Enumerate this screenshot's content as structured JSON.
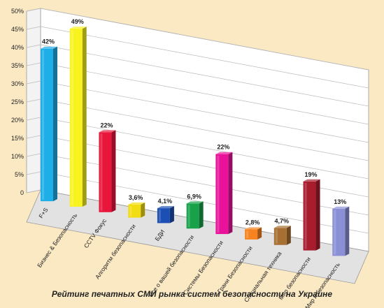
{
  "chart_data": {
    "type": "bar",
    "title": "Рейтинг печатных СМИ рынка систем безопасности на Украине",
    "xlabel": "",
    "ylabel": "",
    "ylim": [
      0,
      50
    ],
    "yticks": [
      "0",
      "5%",
      "10%",
      "15%",
      "20%",
      "25%",
      "30%",
      "35%",
      "40%",
      "45%",
      "50%"
    ],
    "categories": [
      "F+S",
      "Бизнес & Безопасность",
      "CCTV Фокус",
      "Алгоритм безопасности",
      "БДИ",
      "Все о вашей безопасности",
      "Системы Безопасности",
      "Грани Безопасности",
      "Специальная техника",
      "Мир безопасности",
      "Мир и безопасность"
    ],
    "values": [
      42,
      49,
      22,
      3.6,
      4.1,
      6.9,
      22,
      2.8,
      4.7,
      19,
      13
    ],
    "data_labels": [
      "42%",
      "49%",
      "22%",
      "3,6%",
      "4,1%",
      "6,9%",
      "22%",
      "2,8%",
      "4,7%",
      "19%",
      "13%"
    ],
    "colors": [
      "#1eaee8",
      "#f8f31e",
      "#e8163a",
      "#f2dc12",
      "#1c4fb3",
      "#17a24a",
      "#e8139a",
      "#f78320",
      "#a86f33",
      "#a71d2e",
      "#8b8fd6"
    ],
    "grid": true,
    "legend": "none"
  }
}
